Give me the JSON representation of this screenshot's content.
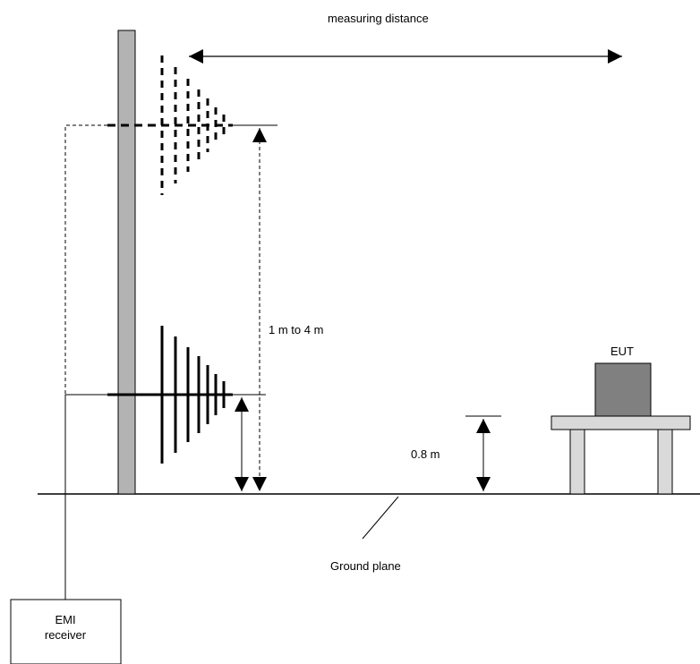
{
  "labels": {
    "measuring_distance": "measuring distance",
    "height_range": "1 m to 4 m",
    "table_height": "0.8 m",
    "eut": "EUT",
    "ground_plane": "Ground plane",
    "receiver_line1": "EMI",
    "receiver_line2": "receiver"
  },
  "colors": {
    "mast": "#b3b3b3",
    "eut_box": "#808080",
    "table": "#d9d9d9",
    "line": "#000000"
  }
}
